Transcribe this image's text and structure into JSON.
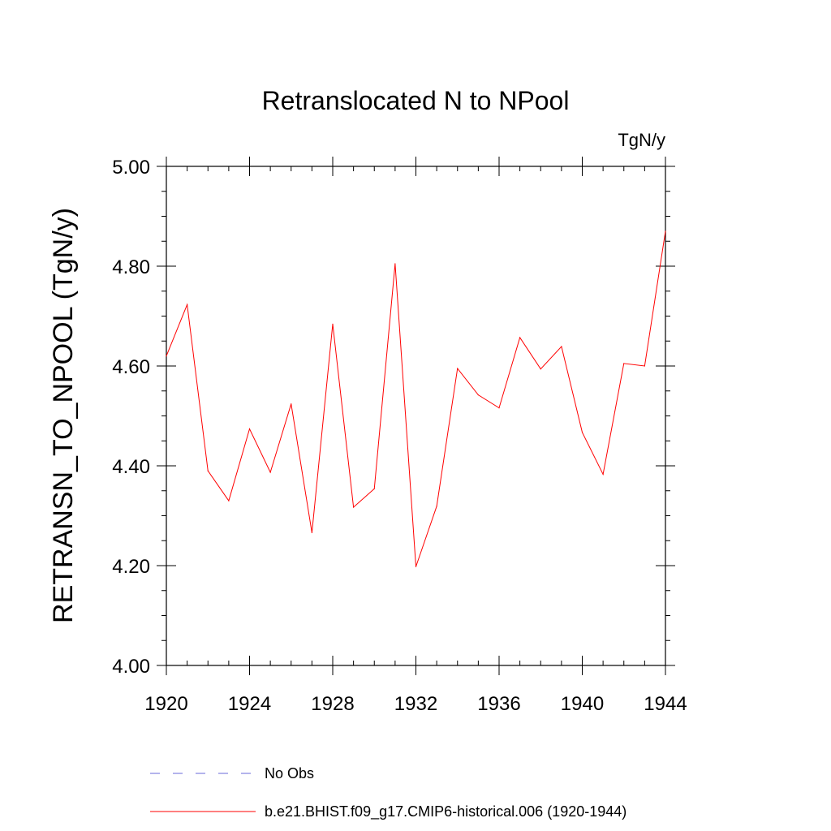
{
  "chart_data": {
    "type": "line",
    "title": "Retranslocated N to NPool",
    "units_label": "TgN/y",
    "ylabel": "RETRANSN_TO_NPOOL  (TgN/y)",
    "xlabel": "",
    "xlim": [
      1920,
      1944
    ],
    "ylim": [
      4.0,
      5.0
    ],
    "x_ticks": [
      1920,
      1924,
      1928,
      1932,
      1936,
      1940,
      1944
    ],
    "x_tick_labels": [
      "1920",
      "1924",
      "1928",
      "1932",
      "1936",
      "1940",
      "1944"
    ],
    "y_ticks": [
      4.0,
      4.2,
      4.4,
      4.6,
      4.8,
      5.0
    ],
    "y_tick_labels": [
      "4.00",
      "4.20",
      "4.40",
      "4.60",
      "4.80",
      "5.00"
    ],
    "series": [
      {
        "name": "b.e21.BHIST.f09_g17.CMIP6-historical.006 (1920-1944)",
        "color": "#ff0000",
        "style": "solid",
        "x": [
          1920,
          1921,
          1922,
          1923,
          1924,
          1925,
          1926,
          1927,
          1928,
          1929,
          1930,
          1931,
          1932,
          1933,
          1934,
          1935,
          1936,
          1937,
          1938,
          1939,
          1940,
          1941,
          1942,
          1943,
          1944
        ],
        "values": [
          4.62,
          4.723,
          4.39,
          4.33,
          4.474,
          4.387,
          4.524,
          4.266,
          4.684,
          4.317,
          4.354,
          4.805,
          4.198,
          4.319,
          4.595,
          4.542,
          4.516,
          4.657,
          4.594,
          4.639,
          4.467,
          4.383,
          4.605,
          4.6,
          4.87
        ]
      }
    ],
    "legend": [
      {
        "label": "No Obs",
        "color": "#6a6ad8",
        "style": "dashed"
      },
      {
        "label": "b.e21.BHIST.f09_g17.CMIP6-historical.006 (1920-1944)",
        "color": "#ff0000",
        "style": "solid"
      }
    ],
    "legend_position": "bottom"
  }
}
